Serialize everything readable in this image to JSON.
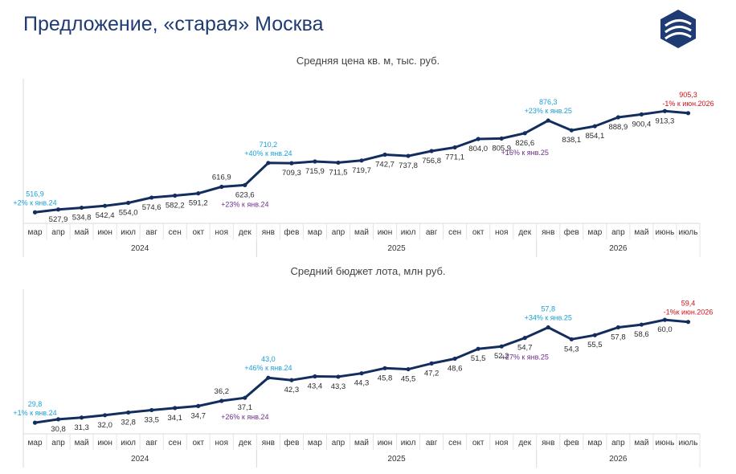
{
  "page": {
    "title": "Предложение, «старая» Москва"
  },
  "colors": {
    "line": "#132e5e",
    "title": "#1f3b73",
    "annotation_up": "#1aa0d8",
    "annotation_mid": "#6b2e8c",
    "annotation_red": "#d0101a"
  },
  "chart_data": [
    {
      "type": "line",
      "title": "Средняя цена кв. м, тыс. руб.",
      "categories": [
        "мар",
        "апр",
        "май",
        "июн",
        "июл",
        "авг",
        "сен",
        "окт",
        "ноя",
        "дек",
        "янв",
        "фев",
        "мар",
        "апр",
        "май",
        "июн",
        "июл",
        "авг",
        "сен",
        "окт",
        "ноя",
        "дек",
        "янв",
        "фев",
        "мар",
        "апр",
        "май",
        "июнь",
        "июль"
      ],
      "years": [
        {
          "label": "2024",
          "from": 0,
          "to": 9
        },
        {
          "label": "2025",
          "from": 10,
          "to": 21
        },
        {
          "label": "2026",
          "from": 22,
          "to": 28
        }
      ],
      "values": [
        516.9,
        527.9,
        534.8,
        542.4,
        554.0,
        574.6,
        582.2,
        591.2,
        616.9,
        623.6,
        710.2,
        709.3,
        715.9,
        711.5,
        719.7,
        742.7,
        737.8,
        756.8,
        771.1,
        804.0,
        805.9,
        826.6,
        876.3,
        838.1,
        854.1,
        888.9,
        900.4,
        913.3,
        905.3
      ],
      "labels": [
        "516,9",
        "527,9",
        "534,8",
        "542,4",
        "554,0",
        "574,6",
        "582,2",
        "591,2",
        "616,9",
        "623,6",
        "710,2",
        "709,3",
        "715,9",
        "711,5",
        "719,7",
        "742,7",
        "737,8",
        "756,8",
        "771,1",
        "804,0",
        "805,9",
        "826,6",
        "876,3",
        "838,1",
        "854,1",
        "888,9",
        "900,4",
        "913,3",
        "905,3"
      ],
      "label_pos": [
        "above",
        "below",
        "below",
        "below",
        "below",
        "below",
        "below",
        "below",
        "above",
        "below",
        "above",
        "below",
        "below",
        "below",
        "below",
        "below",
        "below",
        "below",
        "below",
        "below",
        "below",
        "below",
        "above",
        "below",
        "below",
        "below",
        "below",
        "below",
        "above"
      ],
      "ylim": [
        480,
        1040
      ],
      "annotations": [
        {
          "index": 0,
          "text": "+2% к янв.24",
          "style": "up",
          "pos": "above"
        },
        {
          "index": 9,
          "text": "+23% к янв.24",
          "style": "mid",
          "pos": "below"
        },
        {
          "index": 10,
          "text": "+40% к янв.24",
          "style": "up",
          "pos": "above"
        },
        {
          "index": 21,
          "text": "+16% к янв.25",
          "style": "mid",
          "pos": "below"
        },
        {
          "index": 22,
          "text": "+23% к янв.25",
          "style": "up",
          "pos": "above"
        },
        {
          "index": 28,
          "text": "-1% к июн.2026",
          "style": "red",
          "pos": "above"
        }
      ]
    },
    {
      "type": "line",
      "title": "Средний бюджет лота, млн руб.",
      "categories": [
        "мар",
        "апр",
        "май",
        "июн",
        "июл",
        "авг",
        "сен",
        "окт",
        "ноя",
        "дек",
        "янв",
        "фев",
        "мар",
        "апр",
        "май",
        "июн",
        "июл",
        "авг",
        "сен",
        "окт",
        "ноя",
        "дек",
        "янв",
        "фев",
        "мар",
        "апр",
        "май",
        "июнь",
        "июль"
      ],
      "years": [
        {
          "label": "2024",
          "from": 0,
          "to": 9
        },
        {
          "label": "2025",
          "from": 10,
          "to": 21
        },
        {
          "label": "2026",
          "from": 22,
          "to": 28
        }
      ],
      "values": [
        29.8,
        30.8,
        31.3,
        32.0,
        32.8,
        33.5,
        34.1,
        34.7,
        36.2,
        37.1,
        43.0,
        42.3,
        43.4,
        43.3,
        44.3,
        45.8,
        45.5,
        47.2,
        48.6,
        51.5,
        52.2,
        54.7,
        57.8,
        54.3,
        55.5,
        57.8,
        58.6,
        60.0,
        59.4
      ],
      "labels": [
        "29,8",
        "30,8",
        "31,3",
        "32,0",
        "32,8",
        "33,5",
        "34,1",
        "34,7",
        "36,2",
        "37,1",
        "43,0",
        "42,3",
        "43,4",
        "43,3",
        "44,3",
        "45,8",
        "45,5",
        "47,2",
        "48,6",
        "51,5",
        "52,2",
        "54,7",
        "57,8",
        "54,3",
        "55,5",
        "57,8",
        "58,6",
        "60,0",
        "59,4"
      ],
      "label_pos": [
        "above",
        "below",
        "below",
        "below",
        "below",
        "below",
        "below",
        "below",
        "above",
        "below",
        "above",
        "below",
        "below",
        "below",
        "below",
        "below",
        "below",
        "below",
        "below",
        "below",
        "below",
        "below",
        "above",
        "below",
        "below",
        "below",
        "below",
        "below",
        "above"
      ],
      "ylim": [
        27,
        69
      ],
      "annotations": [
        {
          "index": 0,
          "text": "+1% к янв.24",
          "style": "up",
          "pos": "above"
        },
        {
          "index": 9,
          "text": "+26% к янв.24",
          "style": "mid",
          "pos": "below"
        },
        {
          "index": 10,
          "text": "+46% к янв.24",
          "style": "up",
          "pos": "above"
        },
        {
          "index": 21,
          "text": "+27% к янв.25",
          "style": "mid",
          "pos": "below"
        },
        {
          "index": 22,
          "text": "+34% к янв.25",
          "style": "up",
          "pos": "above"
        },
        {
          "index": 28,
          "text": "-1%к июн.2026",
          "style": "red",
          "pos": "above"
        }
      ]
    }
  ]
}
